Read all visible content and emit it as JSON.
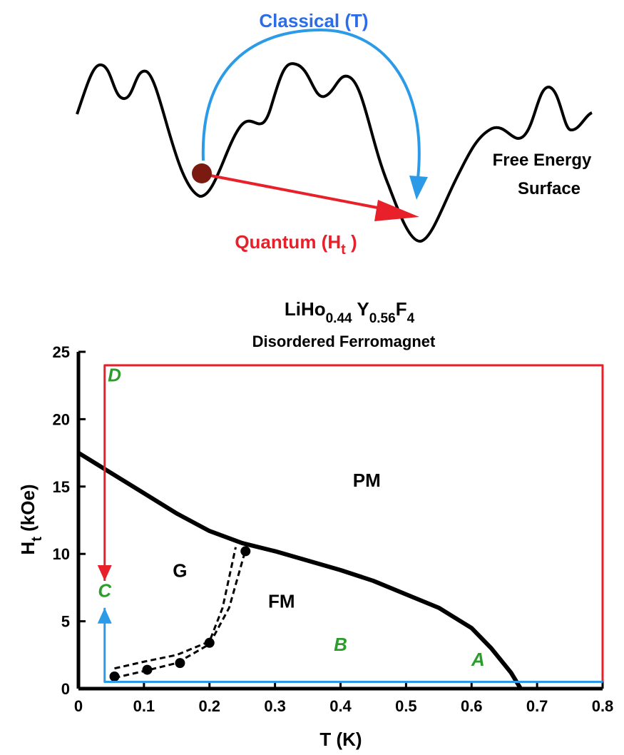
{
  "schematic": {
    "classical_label": "Classical (T)",
    "quantum_label": [
      "Quantum (H",
      "t",
      " )"
    ],
    "surface_label": [
      "Free Energy",
      "Surface"
    ]
  },
  "chart_data": {
    "type": "line",
    "title": [
      "LiHo",
      "0.44",
      " Y",
      "0.56",
      "F",
      "4"
    ],
    "subtitle": "Disordered Ferromagnet",
    "x_label": "T (K)",
    "y_label": [
      "H",
      "t",
      " (kOe)"
    ],
    "xlim": [
      0,
      0.8
    ],
    "ylim": [
      0,
      25
    ],
    "xticks": [
      0,
      0.1,
      0.2,
      0.3,
      0.4,
      0.5,
      0.6,
      0.7,
      0.8
    ],
    "yticks": [
      0,
      5,
      10,
      15,
      20,
      25
    ],
    "series": [
      {
        "type": "line",
        "color": "#000000",
        "x": [
          0,
          0.05,
          0.1,
          0.15,
          0.2,
          0.25,
          0.3,
          0.35,
          0.4,
          0.45,
          0.5,
          0.55,
          0.6,
          0.63,
          0.66,
          0.675
        ],
        "values": [
          17.5,
          16,
          14.5,
          13,
          11.7,
          10.8,
          10.2,
          9.5,
          8.8,
          8,
          7,
          6,
          4.5,
          3,
          1.2,
          0
        ]
      },
      {
        "type": "line",
        "color": "#000000",
        "dashed": true,
        "x": [
          0.055,
          0.1,
          0.15,
          0.2,
          0.22,
          0.24
        ],
        "values": [
          1.5,
          2,
          2.5,
          3.5,
          6,
          10.5
        ]
      },
      {
        "type": "line",
        "color": "#000000",
        "dashed": true,
        "x": [
          0.055,
          0.1,
          0.15,
          0.2,
          0.23,
          0.255
        ],
        "values": [
          0.8,
          1.3,
          1.9,
          3.3,
          6,
          10.3
        ]
      },
      {
        "type": "scatter",
        "color": "#000000",
        "x": [
          0.055,
          0.105,
          0.155,
          0.2,
          0.255
        ],
        "values": [
          0.9,
          1.4,
          1.9,
          3.4,
          10.2
        ]
      },
      {
        "type": "line",
        "color": "#e8202a",
        "arrow": true,
        "x": [
          0.8,
          0.8,
          0.04,
          0.04
        ],
        "values": [
          0.5,
          24,
          24,
          8
        ]
      },
      {
        "type": "line",
        "color": "#2b9be8",
        "arrow": true,
        "x": [
          0.8,
          0.04,
          0.04
        ],
        "values": [
          0.5,
          0.5,
          6
        ]
      }
    ],
    "annotations": [
      {
        "text": "PM",
        "color": "#000000"
      },
      {
        "text": "G",
        "color": "#000000"
      },
      {
        "text": "FM",
        "color": "#000000"
      },
      {
        "text": "A",
        "color": "#2a9d2a"
      },
      {
        "text": "B",
        "color": "#2a9d2a"
      },
      {
        "text": "C",
        "color": "#2a9d2a"
      },
      {
        "text": "D",
        "color": "#2a9d2a"
      }
    ]
  }
}
